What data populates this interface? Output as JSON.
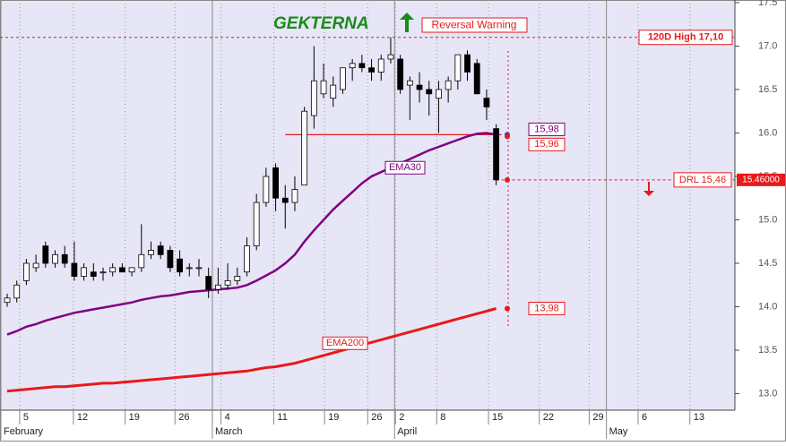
{
  "chart_data": {
    "type": "candlestick",
    "title": "GEKTERNA",
    "signal": "Reversal Warning",
    "open": [
      14.05,
      14.1,
      14.3,
      14.45,
      14.7,
      14.5,
      14.6,
      14.5,
      14.35,
      14.4,
      14.4,
      14.4,
      14.45,
      14.4,
      14.45,
      14.6,
      14.7,
      14.65,
      14.55,
      14.45,
      14.45,
      14.35,
      14.2,
      14.25,
      14.3,
      14.4,
      14.7,
      15.2,
      15.6,
      15.25,
      15.2,
      15.4,
      16.2,
      16.45,
      16.4,
      16.5,
      16.75,
      16.8,
      16.75,
      16.7,
      16.85,
      16.85,
      16.55,
      16.55,
      16.5,
      16.4,
      16.5,
      16.6,
      16.9,
      16.8,
      16.4,
      16.05
    ],
    "high": [
      14.15,
      14.3,
      14.55,
      14.6,
      14.75,
      14.65,
      14.7,
      14.75,
      14.5,
      14.5,
      14.45,
      14.5,
      14.5,
      14.45,
      14.95,
      14.75,
      14.75,
      14.7,
      14.65,
      14.5,
      14.55,
      14.45,
      14.45,
      14.5,
      14.45,
      14.8,
      15.3,
      15.6,
      15.65,
      15.4,
      15.5,
      16.3,
      17.0,
      16.8,
      16.65,
      16.75,
      16.85,
      16.9,
      16.85,
      16.9,
      17.1,
      16.9,
      16.65,
      16.7,
      16.6,
      16.6,
      16.65,
      16.9,
      16.95,
      16.85,
      16.5,
      16.1
    ],
    "low": [
      14.0,
      14.05,
      14.25,
      14.4,
      14.45,
      14.45,
      14.45,
      14.3,
      14.3,
      14.3,
      14.3,
      14.35,
      14.4,
      14.35,
      14.4,
      14.55,
      14.55,
      14.4,
      14.35,
      14.35,
      14.35,
      14.1,
      14.15,
      14.2,
      14.25,
      14.35,
      14.65,
      15.15,
      15.1,
      14.9,
      15.1,
      15.4,
      16.05,
      16.4,
      16.3,
      16.45,
      16.6,
      16.7,
      16.6,
      16.6,
      16.8,
      16.45,
      16.15,
      16.35,
      16.2,
      16.0,
      16.35,
      16.5,
      16.6,
      16.45,
      16.15,
      15.4
    ],
    "close": [
      14.1,
      14.25,
      14.5,
      14.5,
      14.5,
      14.6,
      14.5,
      14.35,
      14.45,
      14.35,
      14.4,
      14.45,
      14.4,
      14.45,
      14.6,
      14.65,
      14.6,
      14.45,
      14.4,
      14.45,
      14.45,
      14.2,
      14.25,
      14.3,
      14.35,
      14.7,
      15.2,
      15.5,
      15.25,
      15.2,
      15.35,
      16.25,
      16.6,
      16.6,
      16.55,
      16.75,
      16.8,
      16.75,
      16.7,
      16.85,
      16.9,
      16.5,
      16.6,
      16.5,
      16.45,
      16.5,
      16.6,
      16.9,
      16.7,
      16.45,
      16.3,
      15.46
    ],
    "series": [
      {
        "name": "EMA30",
        "color": "#800080",
        "values": [
          13.68,
          13.72,
          13.77,
          13.8,
          13.84,
          13.87,
          13.9,
          13.93,
          13.95,
          13.97,
          13.99,
          14.01,
          14.03,
          14.05,
          14.08,
          14.1,
          14.12,
          14.13,
          14.15,
          14.17,
          14.18,
          14.19,
          14.2,
          14.21,
          14.22,
          14.25,
          14.3,
          14.36,
          14.42,
          14.5,
          14.6,
          14.75,
          14.88,
          15.0,
          15.12,
          15.22,
          15.32,
          15.42,
          15.5,
          15.55,
          15.6,
          15.65,
          15.7,
          15.75,
          15.8,
          15.84,
          15.88,
          15.92,
          15.96,
          15.99,
          16.0,
          15.98
        ]
      },
      {
        "name": "EMA200",
        "color": "#e8191a",
        "values": [
          13.03,
          13.04,
          13.05,
          13.06,
          13.07,
          13.08,
          13.08,
          13.09,
          13.1,
          13.11,
          13.12,
          13.12,
          13.13,
          13.14,
          13.15,
          13.16,
          13.17,
          13.18,
          13.19,
          13.2,
          13.21,
          13.22,
          13.23,
          13.24,
          13.25,
          13.26,
          13.28,
          13.3,
          13.31,
          13.33,
          13.35,
          13.38,
          13.41,
          13.44,
          13.47,
          13.5,
          13.53,
          13.56,
          13.59,
          13.62,
          13.65,
          13.68,
          13.71,
          13.74,
          13.77,
          13.8,
          13.83,
          13.86,
          13.89,
          13.92,
          13.95,
          13.98
        ]
      }
    ],
    "xlim": [
      -0.75,
      75.9
    ],
    "xticks": [
      {
        "value": 1.3,
        "label": "5"
      },
      {
        "value": 6.9,
        "label": "12"
      },
      {
        "value": 12.3,
        "label": "19"
      },
      {
        "value": 17.5,
        "label": "26"
      },
      {
        "value": 22.3,
        "label": "4"
      },
      {
        "value": 27.8,
        "label": "11"
      },
      {
        "value": 33.1,
        "label": "19"
      },
      {
        "value": 37.6,
        "label": "26"
      },
      {
        "value": 40.5,
        "label": "2"
      },
      {
        "value": 44.8,
        "label": "8"
      },
      {
        "value": 50.2,
        "label": "15"
      },
      {
        "value": 55.5,
        "label": "22"
      },
      {
        "value": 60.7,
        "label": "29"
      },
      {
        "value": 65.8,
        "label": "6"
      },
      {
        "value": 71.2,
        "label": "13"
      }
    ],
    "month_ticks": [
      {
        "value": -0.75,
        "label": "February"
      },
      {
        "value": 21.4,
        "label": "March"
      },
      {
        "value": 40.4,
        "label": "April"
      },
      {
        "value": 62.5,
        "label": "May"
      }
    ],
    "ylim": [
      12.81,
      17.53
    ],
    "yticks": [
      {
        "value": 13,
        "label": "13.0"
      },
      {
        "value": 13.5,
        "label": "13.5"
      },
      {
        "value": 14,
        "label": "14.0"
      },
      {
        "value": 14.5,
        "label": "14.5"
      },
      {
        "value": 15,
        "label": "15.0"
      },
      {
        "value": 15.5,
        "label": "15.5"
      },
      {
        "value": 16,
        "label": "16.0"
      },
      {
        "value": 16.5,
        "label": "16.5"
      },
      {
        "value": 17,
        "label": "17.0"
      },
      {
        "value": 17.5,
        "label": "17.5"
      }
    ],
    "grid": true,
    "levels": [
      {
        "label": "120D High 17,10",
        "value": 17.1
      },
      {
        "label": "DRL 15,46",
        "value": 15.46
      }
    ],
    "price_tag": {
      "label": "15.46000",
      "value": 15.46
    },
    "end_labels": [
      {
        "label": "15,98",
        "value": 15.98,
        "color": "#800080"
      },
      {
        "label": "15,96",
        "value": 15.96,
        "color": "#e8191a"
      },
      {
        "label": "13,98",
        "value": 13.98,
        "color": "#e8191a"
      }
    ]
  }
}
